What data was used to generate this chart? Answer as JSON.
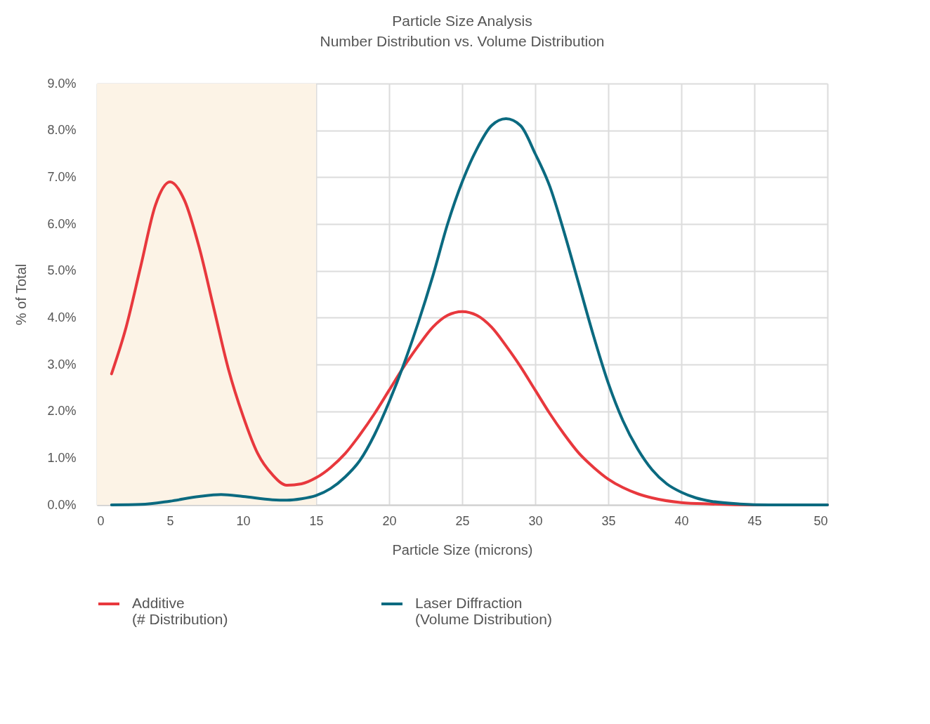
{
  "chart_data": {
    "type": "line",
    "title": "Particle Size Analysis",
    "subtitle": "Number Distribution vs. Volume Distribution",
    "xlabel": "Particle Size (microns)",
    "ylabel": "% of Total",
    "xlim": [
      0,
      50
    ],
    "xticks": [
      0,
      5,
      10,
      15,
      20,
      25,
      30,
      35,
      40,
      45,
      50
    ],
    "ylim": [
      0,
      9
    ],
    "yticks": [
      {
        "value": 0,
        "label": "0.0%"
      },
      {
        "value": 1,
        "label": "1.0%"
      },
      {
        "value": 2,
        "label": "2.0%"
      },
      {
        "value": 3,
        "label": "3.0%"
      },
      {
        "value": 4,
        "label": "4.0%"
      },
      {
        "value": 5,
        "label": "5.0%"
      },
      {
        "value": 6,
        "label": "6.0%"
      },
      {
        "value": 7,
        "label": "7.0%"
      },
      {
        "value": 8,
        "label": "8.0%"
      },
      {
        "value": 9,
        "label": "9.0%"
      }
    ],
    "grid": true,
    "legend": "bottom",
    "marker": "none",
    "line_style": "solid",
    "bands": [
      {
        "axis": "x",
        "from": 0,
        "to": 15,
        "color": "#fcf3e6"
      }
    ],
    "series": [
      {
        "name": "Additive (# Distribution)",
        "color": "#e8383d",
        "x": [
          1,
          2,
          3,
          4,
          5,
          6,
          7,
          8,
          9,
          10,
          11,
          12,
          13,
          14,
          15,
          16,
          17,
          18,
          19,
          20,
          21,
          22,
          23,
          24,
          25,
          26,
          27,
          28,
          29,
          30,
          31,
          32,
          33,
          34,
          35,
          36,
          37,
          38,
          40,
          42,
          45,
          50
        ],
        "values": [
          2.8,
          3.8,
          5.1,
          6.4,
          6.9,
          6.5,
          5.5,
          4.2,
          2.9,
          1.9,
          1.1,
          0.65,
          0.42,
          0.45,
          0.58,
          0.8,
          1.1,
          1.5,
          1.95,
          2.45,
          2.95,
          3.4,
          3.8,
          4.05,
          4.13,
          4.05,
          3.8,
          3.4,
          2.95,
          2.45,
          1.95,
          1.5,
          1.1,
          0.8,
          0.55,
          0.37,
          0.24,
          0.15,
          0.05,
          0.02,
          0,
          0
        ]
      },
      {
        "name": "Laser Diffraction (Volume Distribution)",
        "color": "#0b6a80",
        "x": [
          1,
          3,
          5,
          7,
          8.5,
          10,
          12,
          13,
          14,
          15,
          16,
          17,
          18,
          19,
          20,
          21,
          22,
          23,
          24,
          25,
          26,
          27,
          28,
          29,
          30,
          31,
          32,
          33,
          34,
          35,
          36,
          37,
          38,
          39,
          40,
          41,
          42,
          44,
          46,
          50
        ],
        "values": [
          0,
          0.01,
          0.08,
          0.18,
          0.22,
          0.18,
          0.11,
          0.1,
          0.13,
          0.2,
          0.35,
          0.6,
          0.95,
          1.5,
          2.2,
          3.0,
          3.9,
          4.9,
          6.0,
          6.9,
          7.6,
          8.1,
          8.25,
          8.1,
          7.5,
          6.8,
          5.8,
          4.7,
          3.6,
          2.6,
          1.8,
          1.2,
          0.75,
          0.45,
          0.27,
          0.15,
          0.08,
          0.02,
          0,
          0
        ]
      }
    ]
  }
}
